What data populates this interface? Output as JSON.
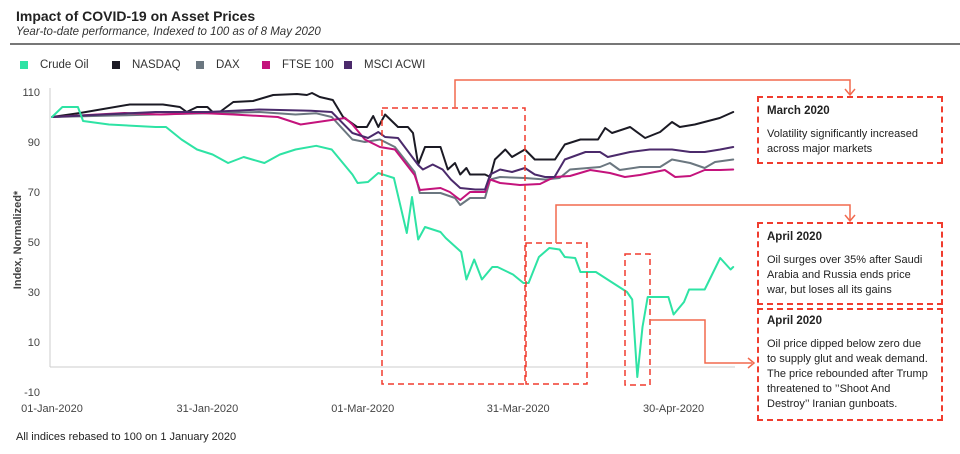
{
  "header": {
    "title": "Impact of COVID-19 on Asset Prices",
    "subtitle": "Year-to-date performance, Indexed to 100 as of 8 May 2020"
  },
  "footnote": "All indices rebased to 100 on 1 January  2020",
  "annotations": [
    {
      "title": "March 2020",
      "text": "Volatility significantly increased across major markets"
    },
    {
      "title": "April 2020",
      "text": "Oil surges over 35%  after Saudi Arabia and Russia ends price war, but loses all its gains"
    },
    {
      "title": "April 2020",
      "text": "Oil price dipped below zero due to supply glut and weak demand. The price rebounded after Trump threatened to ’’Shoot And Destroy’’ Iranian gunboats."
    }
  ],
  "colors": {
    "annotation": "#f03c2e",
    "connector": "#f26a4f"
  },
  "chart_data": {
    "type": "line",
    "title": "Impact of COVID-19 on Asset Prices",
    "xlabel": "",
    "ylabel": "Index, Normalized*",
    "x_unit": "days since 01-Jan-2020",
    "xlim": [
      0,
      132
    ],
    "ylim": [
      -10,
      110
    ],
    "yticks": [
      110,
      90,
      70,
      50,
      30,
      10,
      -10
    ],
    "xticks": [
      {
        "day": 0,
        "label": "01-Jan-2020"
      },
      {
        "day": 30,
        "label": "31-Jan-2020"
      },
      {
        "day": 60,
        "label": "01-Mar-2020"
      },
      {
        "day": 90,
        "label": "31-Mar-2020"
      },
      {
        "day": 120,
        "label": "30-Apr-2020"
      }
    ],
    "legend": "top-left",
    "series": [
      {
        "name": "Crude Oil",
        "color": "#2ee3a4",
        "points": [
          [
            0,
            100
          ],
          [
            2,
            104
          ],
          [
            5,
            104
          ],
          [
            6,
            98.4
          ],
          [
            11,
            97
          ],
          [
            20,
            96
          ],
          [
            22,
            96
          ],
          [
            25,
            91
          ],
          [
            28,
            87
          ],
          [
            31,
            85
          ],
          [
            34,
            81.6
          ],
          [
            37,
            84
          ],
          [
            41,
            81.6
          ],
          [
            44,
            85
          ],
          [
            47,
            87
          ],
          [
            51,
            88.5
          ],
          [
            54,
            87
          ],
          [
            58,
            77
          ],
          [
            59,
            73.6
          ],
          [
            61,
            74
          ],
          [
            63,
            77.6
          ],
          [
            66,
            75.6
          ],
          [
            68.5,
            53.6
          ],
          [
            69.5,
            68
          ],
          [
            70.7,
            51
          ],
          [
            72,
            56
          ],
          [
            75,
            54
          ],
          [
            76,
            51.6
          ],
          [
            79,
            46
          ],
          [
            80,
            35
          ],
          [
            81.5,
            43
          ],
          [
            83,
            35
          ],
          [
            85,
            40
          ],
          [
            86,
            40
          ],
          [
            89,
            37
          ],
          [
            91,
            33.6
          ],
          [
            92,
            33.6
          ],
          [
            94,
            44
          ],
          [
            96,
            47.6
          ],
          [
            98,
            47
          ],
          [
            99,
            44
          ],
          [
            101,
            43.6
          ],
          [
            102,
            38
          ],
          [
            105,
            38
          ],
          [
            108,
            34
          ],
          [
            111,
            30
          ],
          [
            112,
            27
          ],
          [
            113,
            -4
          ],
          [
            114,
            16
          ],
          [
            115,
            28
          ],
          [
            119,
            28
          ],
          [
            120,
            21
          ],
          [
            122,
            26
          ],
          [
            123,
            31
          ],
          [
            126,
            31
          ],
          [
            129,
            43.6
          ],
          [
            131,
            39
          ],
          [
            131.5,
            40
          ]
        ]
      },
      {
        "name": "NASDAQ",
        "color": "#1b1a24",
        "points": [
          [
            0,
            100
          ],
          [
            5.4,
            101.6
          ],
          [
            15,
            105
          ],
          [
            21.4,
            105
          ],
          [
            24.7,
            104
          ],
          [
            26,
            102
          ],
          [
            28,
            104
          ],
          [
            30,
            104
          ],
          [
            31,
            102
          ],
          [
            32.4,
            102
          ],
          [
            35,
            106
          ],
          [
            38.8,
            106.4
          ],
          [
            42.7,
            108.8
          ],
          [
            47.3,
            109.2
          ],
          [
            49.2,
            108.8
          ],
          [
            50.2,
            109.6
          ],
          [
            51.7,
            108
          ],
          [
            54.2,
            106.8
          ],
          [
            56.2,
            100
          ],
          [
            58.9,
            96
          ],
          [
            60.8,
            96
          ],
          [
            62,
            100.4
          ],
          [
            63,
            96
          ],
          [
            64.3,
            101
          ],
          [
            66.8,
            96
          ],
          [
            68.7,
            96
          ],
          [
            69.7,
            93.6
          ],
          [
            70.7,
            81
          ],
          [
            72,
            88
          ],
          [
            75,
            88
          ],
          [
            76.4,
            79
          ],
          [
            77.8,
            81.6
          ],
          [
            78.8,
            77
          ],
          [
            80,
            79.6
          ],
          [
            80.7,
            77
          ],
          [
            83.6,
            77
          ],
          [
            84.6,
            76
          ],
          [
            85.5,
            83
          ],
          [
            87.5,
            87
          ],
          [
            88.8,
            84
          ],
          [
            91.3,
            87
          ],
          [
            93.2,
            83
          ],
          [
            97.1,
            83
          ],
          [
            99,
            89
          ],
          [
            102,
            91
          ],
          [
            105.4,
            91
          ],
          [
            106.8,
            95.6
          ],
          [
            108.1,
            93.6
          ],
          [
            111.6,
            96
          ],
          [
            114.5,
            91.6
          ],
          [
            117.4,
            94
          ],
          [
            119.7,
            98
          ],
          [
            121.2,
            96
          ],
          [
            124.1,
            97
          ],
          [
            128.9,
            99.6
          ],
          [
            131.5,
            102
          ]
        ]
      },
      {
        "name": "DAX",
        "color": "#6b7780",
        "points": [
          [
            0,
            100
          ],
          [
            10,
            100.5
          ],
          [
            20,
            101
          ],
          [
            30,
            101.5
          ],
          [
            40,
            102
          ],
          [
            47,
            101
          ],
          [
            51,
            101.5
          ],
          [
            54,
            100
          ],
          [
            58,
            91
          ],
          [
            60.4,
            90
          ],
          [
            63.3,
            91
          ],
          [
            66.2,
            88
          ],
          [
            70,
            78
          ],
          [
            71,
            69.6
          ],
          [
            75,
            69.6
          ],
          [
            77.8,
            67.6
          ],
          [
            78.8,
            64.8
          ],
          [
            80.7,
            67.6
          ],
          [
            83.6,
            67.6
          ],
          [
            84.6,
            75
          ],
          [
            86.5,
            76
          ],
          [
            91.3,
            75.6
          ],
          [
            95.2,
            75
          ],
          [
            98,
            75.6
          ],
          [
            100,
            79
          ],
          [
            105.8,
            80
          ],
          [
            107.7,
            81.6
          ],
          [
            109.6,
            78.8
          ],
          [
            113.5,
            80
          ],
          [
            117.4,
            80
          ],
          [
            119.7,
            83
          ],
          [
            123.2,
            81.6
          ],
          [
            126,
            79.6
          ],
          [
            128,
            82
          ],
          [
            131.5,
            83
          ]
        ]
      },
      {
        "name": "FTSE 100",
        "color": "#c4137c",
        "points": [
          [
            0,
            100
          ],
          [
            14,
            101.6
          ],
          [
            21,
            101
          ],
          [
            28.6,
            101.6
          ],
          [
            35,
            101
          ],
          [
            43.6,
            100
          ],
          [
            48,
            97
          ],
          [
            56.6,
            99.6
          ],
          [
            58,
            97
          ],
          [
            60.4,
            91
          ],
          [
            63.3,
            88
          ],
          [
            66.2,
            87
          ],
          [
            70,
            76.8
          ],
          [
            71,
            70.8
          ],
          [
            75,
            71.6
          ],
          [
            76.8,
            70
          ],
          [
            78.8,
            66.8
          ],
          [
            80.7,
            70
          ],
          [
            83.6,
            70
          ],
          [
            84.6,
            75
          ],
          [
            86.5,
            73.6
          ],
          [
            90.3,
            72.8
          ],
          [
            94.2,
            73.2
          ],
          [
            97,
            76
          ],
          [
            100,
            76.4
          ],
          [
            103.9,
            78.8
          ],
          [
            107.7,
            77.6
          ],
          [
            110.6,
            76
          ],
          [
            113.5,
            76.8
          ],
          [
            118.3,
            78.8
          ],
          [
            120.3,
            76
          ],
          [
            123.2,
            76.4
          ],
          [
            126,
            78.8
          ],
          [
            129,
            78.8
          ],
          [
            131.5,
            79
          ]
        ]
      },
      {
        "name": "MSCI ACWI",
        "color": "#4b2a6b",
        "points": [
          [
            0,
            100
          ],
          [
            10,
            101
          ],
          [
            20,
            102
          ],
          [
            30,
            102
          ],
          [
            40,
            103
          ],
          [
            50,
            102.5
          ],
          [
            54,
            102
          ],
          [
            58,
            93.6
          ],
          [
            61,
            91.6
          ],
          [
            63,
            94
          ],
          [
            64.3,
            92
          ],
          [
            66.8,
            91.6
          ],
          [
            70.7,
            80.8
          ],
          [
            71.6,
            79
          ],
          [
            73.5,
            81
          ],
          [
            75.4,
            79
          ],
          [
            77,
            75
          ],
          [
            78.8,
            71.6
          ],
          [
            81.7,
            71
          ],
          [
            83.6,
            71
          ],
          [
            84.6,
            77
          ],
          [
            86.5,
            79
          ],
          [
            88.8,
            78
          ],
          [
            91.3,
            79.6
          ],
          [
            93.2,
            77
          ],
          [
            95.2,
            76
          ],
          [
            97,
            76
          ],
          [
            99,
            83
          ],
          [
            103,
            86
          ],
          [
            105.8,
            86
          ],
          [
            107.3,
            84
          ],
          [
            111.6,
            86
          ],
          [
            115.4,
            87
          ],
          [
            119.7,
            87
          ],
          [
            123.2,
            86
          ],
          [
            126,
            86
          ],
          [
            129,
            87
          ],
          [
            131.5,
            88
          ]
        ]
      }
    ]
  }
}
